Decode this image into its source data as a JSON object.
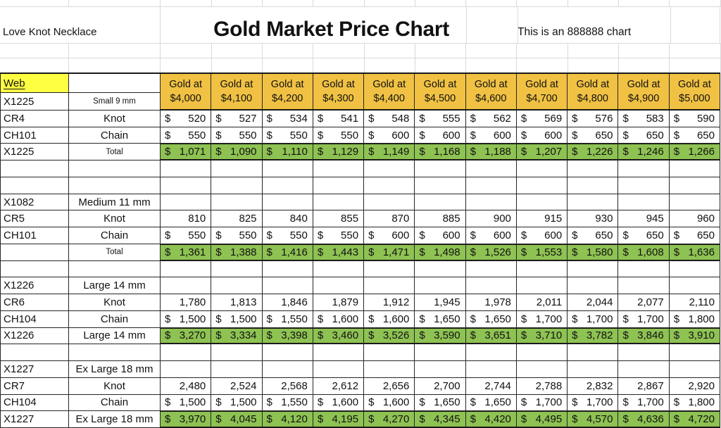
{
  "colors": {
    "header_gold": "#F0C143",
    "total_green": "#8EC253",
    "highlight_yellow": "#FFFF42",
    "grid_faint": "#D9D9D9",
    "grid_dark": "#262626"
  },
  "top": {
    "product_label": "Love Knot Necklace",
    "title": "Gold Market Price Chart",
    "note": "This is an 888888 chart"
  },
  "table": {
    "currency_symbol": "$",
    "header_prefix": "Gold at",
    "web_label": "Web",
    "header_row2": {
      "a": "X1225",
      "b": "Small 9 mm"
    },
    "price_levels": [
      "$4,000",
      "$4,100",
      "$4,200",
      "$4,300",
      "$4,400",
      "$4,500",
      "$4,600",
      "$4,700",
      "$4,800",
      "$4,900",
      "$5,000"
    ],
    "rows": [
      {
        "kind": "data",
        "a": "CR4",
        "b": "Knot",
        "currency": true,
        "values": [
          "520",
          "527",
          "534",
          "541",
          "548",
          "555",
          "562",
          "569",
          "576",
          "583",
          "590"
        ]
      },
      {
        "kind": "data",
        "a": "CH101",
        "b": "Chain",
        "currency": true,
        "values": [
          "550",
          "550",
          "550",
          "550",
          "600",
          "600",
          "600",
          "600",
          "650",
          "650",
          "650"
        ]
      },
      {
        "kind": "total",
        "a": "X1225",
        "b": "Total",
        "b_small": true,
        "values": [
          "1,071",
          "1,090",
          "1,110",
          "1,129",
          "1,149",
          "1,168",
          "1,188",
          "1,207",
          "1,226",
          "1,246",
          "1,266"
        ]
      },
      {
        "kind": "empty"
      },
      {
        "kind": "empty"
      },
      {
        "kind": "title",
        "a": "X1082",
        "b": "Medium 11 mm"
      },
      {
        "kind": "data",
        "a": "CR5",
        "b": "Knot",
        "currency": false,
        "values": [
          "810",
          "825",
          "840",
          "855",
          "870",
          "885",
          "900",
          "915",
          "930",
          "945",
          "960"
        ]
      },
      {
        "kind": "data",
        "a": "CH101",
        "b": "Chain",
        "currency": true,
        "values": [
          "550",
          "550",
          "550",
          "550",
          "600",
          "600",
          "600",
          "600",
          "650",
          "650",
          "650"
        ]
      },
      {
        "kind": "total",
        "a": "",
        "b": "Total",
        "b_small": true,
        "values": [
          "1,361",
          "1,388",
          "1,416",
          "1,443",
          "1,471",
          "1,498",
          "1,526",
          "1,553",
          "1,580",
          "1,608",
          "1,636"
        ]
      },
      {
        "kind": "empty"
      },
      {
        "kind": "title",
        "a": "X1226",
        "b": "Large 14 mm"
      },
      {
        "kind": "data",
        "a": "CR6",
        "b": "Knot",
        "currency": false,
        "values": [
          "1,780",
          "1,813",
          "1,846",
          "1,879",
          "1,912",
          "1,945",
          "1,978",
          "2,011",
          "2,044",
          "2,077",
          "2,110"
        ]
      },
      {
        "kind": "data",
        "a": "CH104",
        "b": "Chain",
        "currency": true,
        "values": [
          "1,500",
          "1,500",
          "1,550",
          "1,600",
          "1,600",
          "1,650",
          "1,650",
          "1,700",
          "1,700",
          "1,700",
          "1,800"
        ]
      },
      {
        "kind": "total",
        "a": "X1226",
        "b": "Large 14 mm",
        "values": [
          "3,270",
          "3,334",
          "3,398",
          "3,460",
          "3,526",
          "3,590",
          "3,651",
          "3,710",
          "3,782",
          "3,846",
          "3,910"
        ]
      },
      {
        "kind": "empty"
      },
      {
        "kind": "title",
        "a": "X1227",
        "b": "Ex Large 18 mm"
      },
      {
        "kind": "data",
        "a": "CR7",
        "b": "Knot",
        "currency": false,
        "values": [
          "2,480",
          "2,524",
          "2,568",
          "2,612",
          "2,656",
          "2,700",
          "2,744",
          "2,788",
          "2,832",
          "2,867",
          "2,920"
        ]
      },
      {
        "kind": "data",
        "a": "CH104",
        "b": "Chain",
        "currency": true,
        "values": [
          "1,500",
          "1,500",
          "1,550",
          "1,600",
          "1,600",
          "1,650",
          "1,650",
          "1,700",
          "1,700",
          "1,700",
          "1,800"
        ]
      },
      {
        "kind": "total",
        "a": "X1227",
        "b": "Ex Large 18 mm",
        "values": [
          "3,970",
          "4,045",
          "4,120",
          "4,195",
          "4,270",
          "4,345",
          "4,420",
          "4,495",
          "4,570",
          "4,636",
          "4,720"
        ]
      }
    ]
  }
}
